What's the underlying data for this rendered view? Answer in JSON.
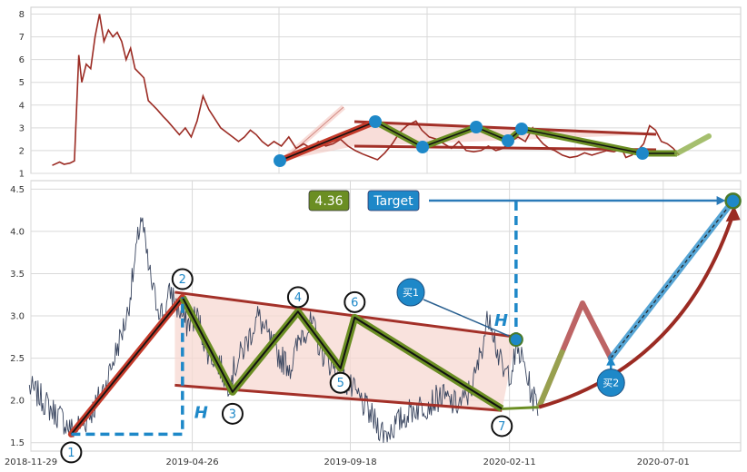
{
  "chart_data": [
    {
      "type": "line",
      "panel": "overview",
      "ylim": [
        1,
        8.3
      ],
      "yticks": [
        1,
        2,
        3,
        4,
        5,
        6,
        7,
        8
      ],
      "grid": true,
      "colors": {
        "price": "#9b2b23",
        "channel": "#a33028",
        "zigzag": "#6b8e23",
        "marker": "#1e88c8"
      },
      "series": [
        {
          "values": [
            [
              -20,
              1.35
            ],
            [
              -15,
              1.5
            ],
            [
              -12,
              1.4
            ],
            [
              -8,
              1.45
            ],
            [
              -5,
              1.55
            ],
            [
              -2,
              6.2
            ],
            [
              0,
              5.0
            ],
            [
              3,
              5.8
            ],
            [
              6,
              5.6
            ],
            [
              9,
              7.0
            ],
            [
              12,
              8.0
            ],
            [
              15,
              6.8
            ],
            [
              18,
              7.3
            ],
            [
              21,
              7.0
            ],
            [
              24,
              7.2
            ],
            [
              27,
              6.8
            ],
            [
              30,
              6.0
            ],
            [
              33,
              6.5
            ],
            [
              36,
              5.6
            ],
            [
              39,
              5.4
            ],
            [
              42,
              5.2
            ],
            [
              45,
              4.2
            ],
            [
              48,
              4.0
            ],
            [
              51,
              3.8
            ],
            [
              55,
              3.5
            ],
            [
              58,
              3.3
            ],
            [
              62,
              3.0
            ],
            [
              66,
              2.7
            ],
            [
              70,
              3.0
            ],
            [
              74,
              2.6
            ],
            [
              78,
              3.3
            ],
            [
              82,
              4.4
            ],
            [
              86,
              3.8
            ],
            [
              90,
              3.4
            ],
            [
              94,
              3.0
            ],
            [
              98,
              2.8
            ],
            [
              102,
              2.6
            ],
            [
              106,
              2.4
            ],
            [
              110,
              2.6
            ],
            [
              114,
              2.9
            ],
            [
              118,
              2.7
            ],
            [
              122,
              2.4
            ],
            [
              126,
              2.2
            ],
            [
              130,
              2.4
            ],
            [
              135,
              2.2
            ],
            [
              140,
              2.6
            ],
            [
              145,
              2.1
            ],
            [
              150,
              2.3
            ],
            [
              155,
              2.1
            ],
            [
              160,
              2.4
            ],
            [
              165,
              2.2
            ],
            [
              170,
              2.3
            ],
            [
              175,
              2.5
            ],
            [
              180,
              2.2
            ],
            [
              185,
              2.0
            ],
            [
              190,
              1.85
            ],
            [
              196,
              1.7
            ],
            [
              200,
              1.6
            ],
            [
              205,
              1.9
            ],
            [
              210,
              2.3
            ],
            [
              215,
              2.8
            ],
            [
              220,
              3.1
            ],
            [
              226,
              3.3
            ],
            [
              230,
              2.9
            ],
            [
              235,
              2.6
            ],
            [
              240,
              2.5
            ],
            [
              245,
              2.3
            ],
            [
              250,
              2.1
            ],
            [
              255,
              2.4
            ],
            [
              260,
              2.0
            ],
            [
              265,
              1.95
            ],
            [
              270,
              2.0
            ],
            [
              275,
              2.2
            ],
            [
              280,
              2.0
            ],
            [
              285,
              2.1
            ],
            [
              290,
              2.4
            ],
            [
              295,
              2.6
            ],
            [
              300,
              2.4
            ],
            [
              305,
              3.0
            ],
            [
              308,
              2.6
            ],
            [
              312,
              2.3
            ],
            [
              316,
              2.1
            ],
            [
              320,
              2.0
            ],
            [
              325,
              1.8
            ],
            [
              330,
              1.7
            ],
            [
              335,
              1.75
            ],
            [
              340,
              1.9
            ],
            [
              345,
              1.8
            ],
            [
              350,
              1.9
            ],
            [
              355,
              2.0
            ],
            [
              360,
              1.95
            ],
            [
              365,
              2.1
            ],
            [
              368,
              1.7
            ],
            [
              372,
              1.8
            ],
            [
              376,
              2.0
            ],
            [
              380,
              2.3
            ],
            [
              384,
              3.1
            ],
            [
              388,
              2.9
            ],
            [
              392,
              2.4
            ],
            [
              396,
              2.3
            ],
            [
              400,
              2.1
            ],
            [
              404,
              1.8
            ]
          ]
        }
      ]
    },
    {
      "type": "line",
      "panel": "main",
      "xlim": [
        "2018-11-29",
        "2020-09-10"
      ],
      "xticks": [
        "2018-11-29",
        "2019-04-26",
        "2019-09-18",
        "2020-02-11",
        "2020-07-01"
      ],
      "ylim": [
        1.4,
        4.6
      ],
      "yticks": [
        "1.5",
        "2.0",
        "2.5",
        "3.0",
        "3.5",
        "4.0",
        "4.5"
      ],
      "grid": true,
      "colors": {
        "price": "#3a4660",
        "channel": "#a33028",
        "channel_fill": "#f7d8d2",
        "zigzag": "#6b8e23",
        "marker": "#1e88c8",
        "guide": "#1e88c8",
        "badge_value": "#6b8e23",
        "badge_target": "#1e88c8"
      },
      "pivots": [
        {
          "label": "1",
          "date": "2019-01-05",
          "value": 1.6
        },
        {
          "label": "2",
          "date": "2019-04-17",
          "value": 3.22
        },
        {
          "label": "3",
          "date": "2019-06-02",
          "value": 2.1
        },
        {
          "label": "4",
          "date": "2019-08-01",
          "value": 3.05
        },
        {
          "label": "5",
          "date": "2019-09-09",
          "value": 2.38
        },
        {
          "label": "6",
          "date": "2019-09-22",
          "value": 2.98
        },
        {
          "label": "7",
          "date": "2020-02-04",
          "value": 1.9
        }
      ],
      "channel": {
        "upper": [
          [
            "2019-04-10",
            3.28
          ],
          [
            "2020-02-17",
            2.75
          ]
        ],
        "lower": [
          [
            "2019-04-10",
            2.18
          ],
          [
            "2020-02-04",
            1.88
          ]
        ]
      },
      "projection": {
        "flat": [
          [
            "2020-02-04",
            1.9
          ],
          [
            "2020-03-09",
            1.92
          ]
        ],
        "zigzag": [
          [
            "2020-03-09",
            1.92
          ],
          [
            "2020-04-18",
            3.15
          ],
          [
            "2020-05-14",
            2.5
          ]
        ],
        "target_line": [
          [
            "2020-05-14",
            2.5
          ],
          [
            "2020-09-03",
            4.36
          ]
        ],
        "curve": [
          [
            "2020-03-09",
            1.92
          ],
          [
            "2020-07-18",
            2.4
          ],
          [
            "2020-09-03",
            4.2
          ]
        ]
      },
      "annotations": {
        "value_badge": "4.36",
        "target_badge": "Target",
        "height_marker_1": "H",
        "height_marker_2": "H",
        "buy_1": "买1",
        "buy_2": "买2",
        "target_value": 4.36
      }
    }
  ]
}
